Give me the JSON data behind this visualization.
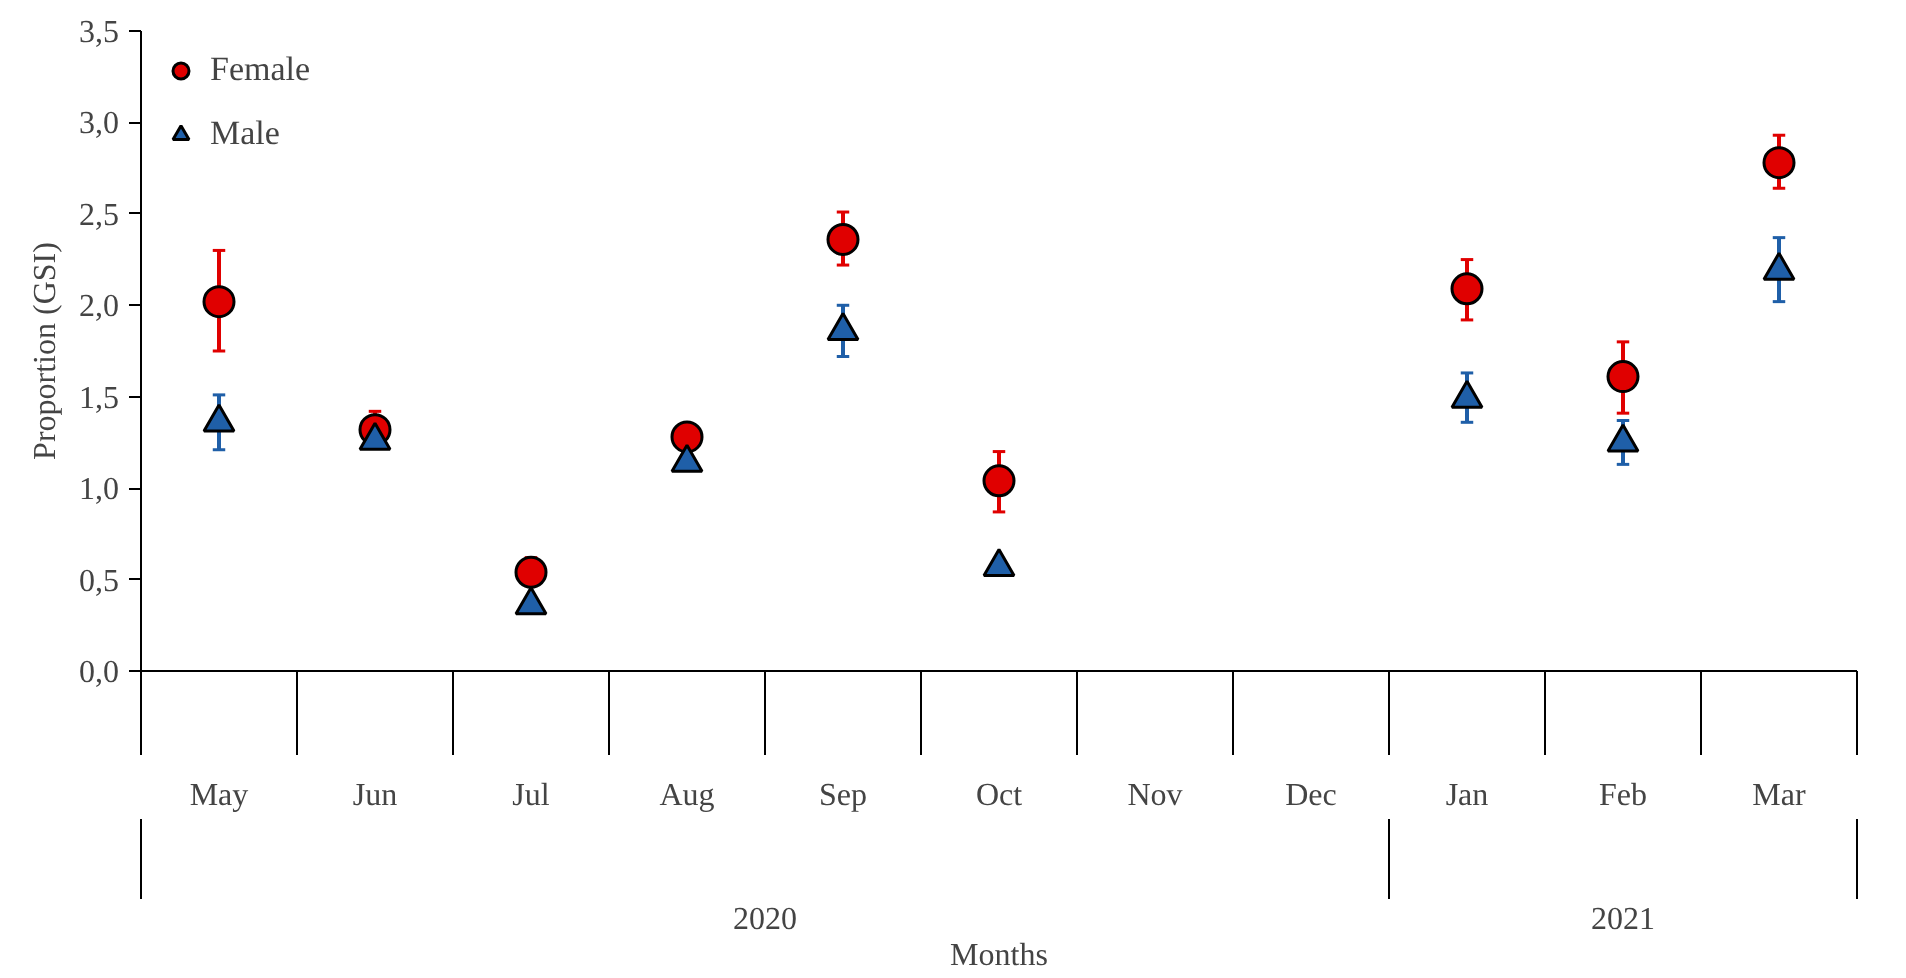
{
  "chart_data": {
    "type": "scatter",
    "xlabel": "Months",
    "ylabel": "Proportion (GSI)",
    "categories": [
      "May",
      "Jun",
      "Jul",
      "Aug",
      "Sep",
      "Oct",
      "Nov",
      "Dec",
      "Jan",
      "Feb",
      "Mar"
    ],
    "series": [
      {
        "name": "Female",
        "color": "#e00000",
        "marker": "circle",
        "values": [
          2.02,
          1.32,
          0.54,
          1.28,
          2.36,
          1.04,
          null,
          null,
          2.09,
          1.61,
          2.78
        ],
        "errors": [
          [
            1.75,
            2.3
          ],
          [
            1.25,
            1.42
          ],
          [
            0.47,
            0.62
          ],
          [
            1.21,
            1.35
          ],
          [
            2.22,
            2.51
          ],
          [
            0.87,
            1.2
          ],
          null,
          null,
          [
            1.92,
            2.25
          ],
          [
            1.41,
            1.8
          ],
          [
            2.64,
            2.93
          ]
        ]
      },
      {
        "name": "Male",
        "color": "#1f5fa8",
        "marker": "triangle",
        "values": [
          1.36,
          1.26,
          0.36,
          1.14,
          1.86,
          0.57,
          null,
          null,
          1.49,
          1.25,
          2.19
        ],
        "errors": [
          [
            1.21,
            1.51
          ],
          [
            1.23,
            1.29
          ],
          [
            0.33,
            0.39
          ],
          [
            1.11,
            1.17
          ],
          [
            1.72,
            2.0
          ],
          [
            0.54,
            0.6
          ],
          null,
          null,
          [
            1.36,
            1.63
          ],
          [
            1.13,
            1.37
          ],
          [
            2.02,
            2.37
          ]
        ]
      }
    ],
    "annotations": [
      "2020",
      "2021"
    ],
    "ylim": [
      0,
      3.5
    ],
    "yticks": [
      {
        "value": 0,
        "label": "0,0"
      },
      {
        "value": 0.5,
        "label": "0,5"
      },
      {
        "value": 1,
        "label": "1,0"
      },
      {
        "value": 1.5,
        "label": "1,5"
      },
      {
        "value": 2,
        "label": "2,0"
      },
      {
        "value": 2.5,
        "label": "2,5"
      },
      {
        "value": 3,
        "label": "3,0"
      },
      {
        "value": 3.5,
        "label": "3,5"
      }
    ],
    "grid": false,
    "legend": "top left"
  }
}
